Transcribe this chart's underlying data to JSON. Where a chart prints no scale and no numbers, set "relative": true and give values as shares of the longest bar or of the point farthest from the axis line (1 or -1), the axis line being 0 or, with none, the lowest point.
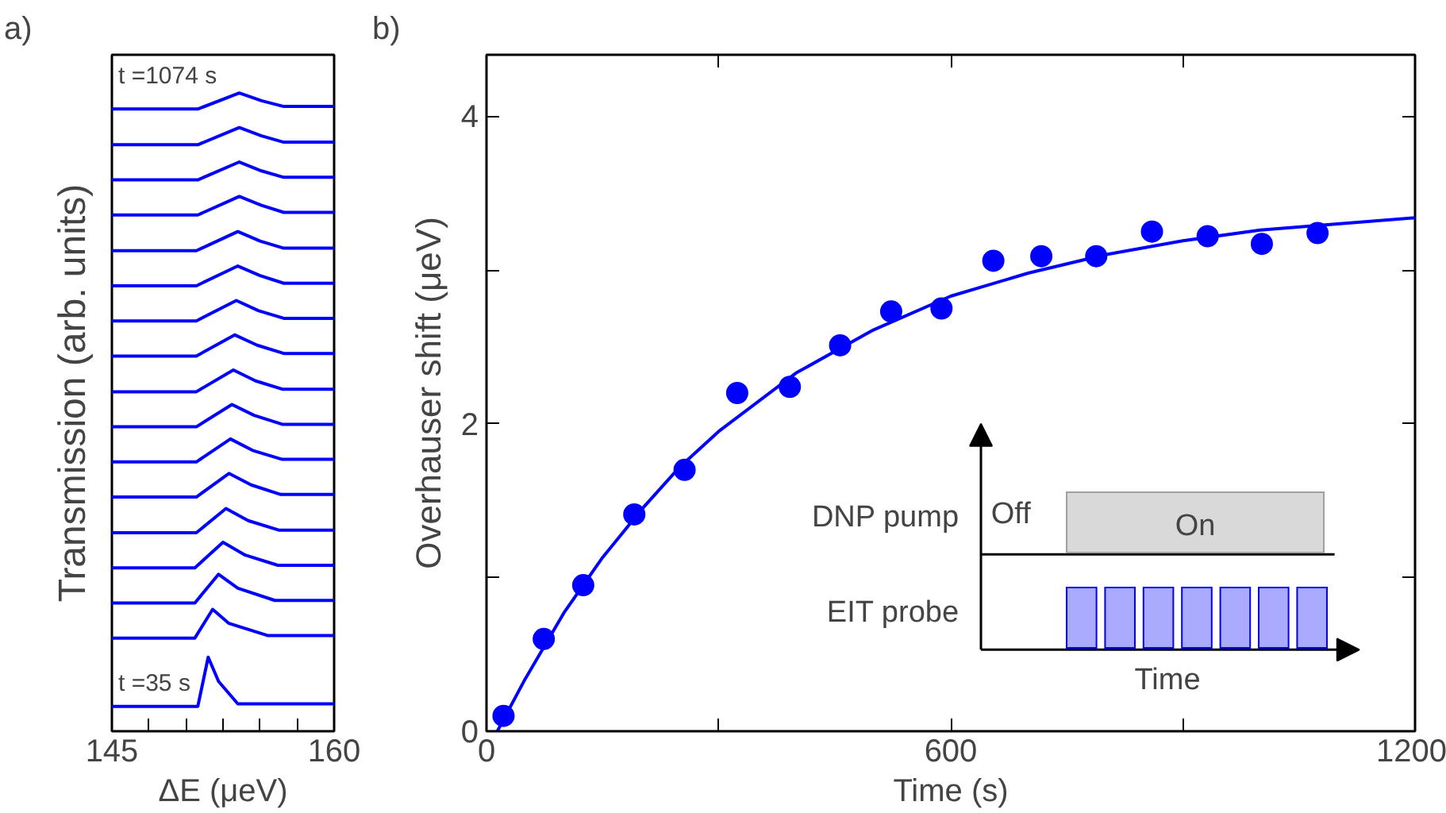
{
  "chart_data": [
    {
      "type": "line",
      "title": "a)",
      "xlabel": "ΔE (μeV)",
      "ylabel": "Transmission (arb. units)",
      "relative": true,
      "color": "#0000ff",
      "xlim": [
        145,
        160
      ],
      "xticks": [
        145,
        {
          "value": 147.5,
          "label": null
        },
        {
          "value": 150,
          "label": null
        },
        {
          "value": 152.5,
          "label": null
        },
        {
          "value": 155,
          "label": null
        },
        {
          "value": 157.5,
          "label": null
        },
        160
      ],
      "annotations": [
        "t =1074 s",
        "t =35 s"
      ],
      "series": [
        {
          "x": [
            145,
            150.8,
            151.5,
            152.2,
            153.5,
            160
          ],
          "values": [
            0.039,
            0.039,
            0.116,
            0.078,
            0.043,
            0.043
          ]
        },
        {
          "x": [
            145,
            150.6,
            151.8,
            152.9,
            155.5,
            160
          ],
          "values": [
            0.146,
            0.146,
            0.191,
            0.169,
            0.15,
            0.15
          ]
        },
        {
          "x": [
            145,
            150.6,
            152.2,
            153.5,
            156.0,
            160
          ],
          "values": [
            0.201,
            0.201,
            0.246,
            0.224,
            0.205,
            0.205
          ]
        },
        {
          "x": [
            145,
            150.6,
            152.5,
            154.0,
            156.2,
            160
          ],
          "values": [
            0.256,
            0.256,
            0.296,
            0.276,
            0.26,
            0.26
          ]
        },
        {
          "x": [
            145,
            150.7,
            152.7,
            154.2,
            156.3,
            160
          ],
          "values": [
            0.311,
            0.311,
            0.349,
            0.33,
            0.315,
            0.315
          ]
        },
        {
          "x": [
            145,
            150.7,
            152.9,
            154.4,
            156.4,
            160
          ],
          "values": [
            0.367,
            0.367,
            0.404,
            0.386,
            0.371,
            0.371
          ]
        },
        {
          "x": [
            145,
            150.7,
            153.0,
            154.5,
            156.5,
            160
          ],
          "values": [
            0.422,
            0.422,
            0.458,
            0.44,
            0.426,
            0.426
          ]
        },
        {
          "x": [
            145,
            150.7,
            153.1,
            154.6,
            156.5,
            160
          ],
          "values": [
            0.477,
            0.477,
            0.512,
            0.495,
            0.481,
            0.481
          ]
        },
        {
          "x": [
            145,
            150.7,
            153.2,
            154.7,
            156.5,
            160
          ],
          "values": [
            0.532,
            0.532,
            0.566,
            0.549,
            0.536,
            0.536
          ]
        },
        {
          "x": [
            145,
            150.7,
            153.3,
            154.8,
            156.6,
            160
          ],
          "values": [
            0.588,
            0.588,
            0.621,
            0.605,
            0.592,
            0.592
          ]
        },
        {
          "x": [
            145,
            150.7,
            153.4,
            154.9,
            156.6,
            160
          ],
          "values": [
            0.643,
            0.643,
            0.675,
            0.659,
            0.647,
            0.647
          ]
        },
        {
          "x": [
            145,
            150.7,
            153.5,
            155.0,
            156.6,
            160
          ],
          "values": [
            0.698,
            0.698,
            0.729,
            0.714,
            0.702,
            0.702
          ]
        },
        {
          "x": [
            145,
            150.7,
            153.5,
            155.0,
            156.6,
            160
          ],
          "values": [
            0.753,
            0.753,
            0.783,
            0.768,
            0.757,
            0.757
          ]
        },
        {
          "x": [
            145,
            150.8,
            153.6,
            155.1,
            156.6,
            160
          ],
          "values": [
            0.809,
            0.809,
            0.838,
            0.824,
            0.813,
            0.813
          ]
        },
        {
          "x": [
            145,
            150.8,
            153.6,
            155.1,
            156.6,
            160
          ],
          "values": [
            0.864,
            0.864,
            0.892,
            0.878,
            0.868,
            0.868
          ]
        },
        {
          "x": [
            145,
            150.8,
            153.6,
            155.1,
            156.6,
            160
          ],
          "values": [
            0.919,
            0.919,
            0.946,
            0.933,
            0.923,
            0.923
          ]
        },
        {
          "x": [
            145,
            150.8,
            153.6,
            155.1,
            156.6,
            160
          ],
          "values": [
            0.975,
            0.975,
            1.0,
            0.988,
            0.979,
            0.979
          ]
        }
      ]
    },
    {
      "type": "scatter",
      "title": "b)",
      "xlabel": "Time (s)",
      "ylabel": "Overhauser shift (μeV)",
      "xlim": [
        0,
        1200
      ],
      "xticks": [
        0,
        {
          "value": 300,
          "label": null
        },
        600,
        {
          "value": 900,
          "label": null
        },
        1200
      ],
      "ylim": [
        0,
        4.4
      ],
      "yticks": [
        0,
        {
          "value": 1,
          "label": null
        },
        2,
        {
          "value": 3,
          "label": null
        },
        4
      ],
      "annotations": [
        "DNP pump",
        "EIT probe",
        "Off",
        "On",
        "Time"
      ],
      "series": [
        {
          "type": "scatter",
          "marker": "circle",
          "color": "#0000ff",
          "x": [
            22,
            74,
            125,
            191,
            256,
            324,
            392,
            457,
            523,
            588,
            655,
            717,
            788,
            860,
            932,
            1002,
            1074
          ],
          "values": [
            0.1,
            0.6,
            0.95,
            1.41,
            1.7,
            2.2,
            2.24,
            2.51,
            2.73,
            2.75,
            3.06,
            3.09,
            3.09,
            3.25,
            3.22,
            3.17,
            3.24
          ]
        },
        {
          "type": "line",
          "color": "#0000ff",
          "x": [
            14,
            50,
            100,
            150,
            200,
            250,
            300,
            400,
            500,
            600,
            700,
            800,
            900,
            1000,
            1100,
            1200
          ],
          "values": [
            0,
            0.34,
            0.77,
            1.13,
            1.44,
            1.72,
            1.95,
            2.33,
            2.61,
            2.83,
            2.98,
            3.1,
            3.19,
            3.26,
            3.3,
            3.34
          ]
        }
      ]
    }
  ]
}
